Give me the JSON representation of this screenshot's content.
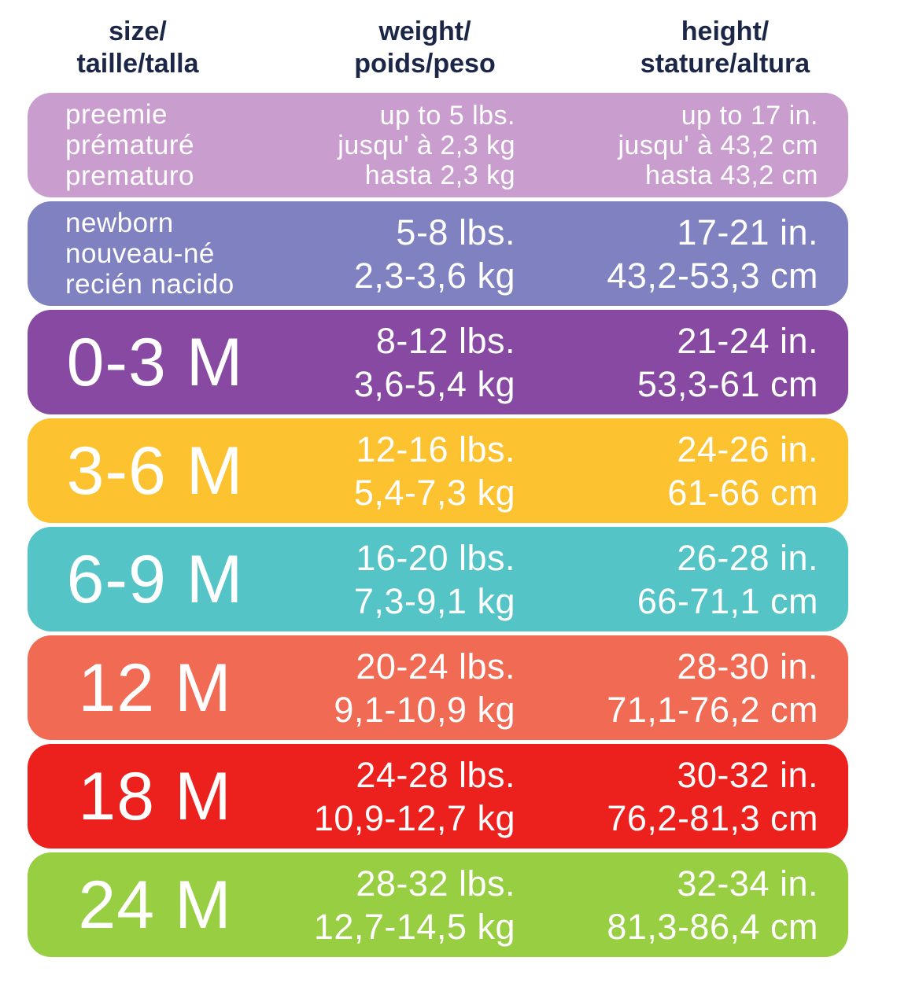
{
  "colors": {
    "background": "#ffffff",
    "header_text": "#1c2647",
    "row_text": "#ffffff"
  },
  "chart_data": {
    "type": "table",
    "title": "Baby size chart (size / weight / height in English, French, Spanish)",
    "columns": [
      {
        "id": "size",
        "lines": [
          "size/",
          "taille/talla"
        ]
      },
      {
        "id": "weight",
        "lines": [
          "weight/",
          "poids/peso"
        ]
      },
      {
        "id": "height",
        "lines": [
          "height/",
          "stature/altura"
        ]
      }
    ],
    "rows": [
      {
        "id": "preemie",
        "color": "#c99ecf",
        "size": [
          "preemie",
          "prématuré",
          "prematuro"
        ],
        "weight": [
          "up to 5 lbs.",
          "jusqu' à 2,3 kg",
          "hasta 2,3 kg"
        ],
        "height": [
          "up to 17 in.",
          "jusqu' à 43,2 cm",
          "hasta 43,2 cm"
        ]
      },
      {
        "id": "newborn",
        "color": "#8081c0",
        "size": [
          "newborn",
          "nouveau-né",
          "recién nacido"
        ],
        "weight": [
          "5-8 lbs.",
          "2,3-3,6 kg"
        ],
        "height": [
          "17-21 in.",
          "43,2-53,3 cm"
        ]
      },
      {
        "id": "0-3m",
        "color": "#8749a1",
        "size": [
          "0-3 M"
        ],
        "weight": [
          "8-12 lbs.",
          "3,6-5,4 kg"
        ],
        "height": [
          "21-24 in.",
          "53,3-61 cm"
        ]
      },
      {
        "id": "3-6m",
        "color": "#fcc230",
        "size": [
          "3-6 M"
        ],
        "weight": [
          "12-16 lbs.",
          "5,4-7,3 kg"
        ],
        "height": [
          "24-26 in.",
          "61-66 cm"
        ]
      },
      {
        "id": "6-9m",
        "color": "#54c4c6",
        "size": [
          "6-9 M"
        ],
        "weight": [
          "16-20 lbs.",
          "7,3-9,1 kg"
        ],
        "height": [
          "26-28 in.",
          "66-71,1 cm"
        ]
      },
      {
        "id": "12m",
        "color": "#f16a54",
        "size": [
          "12 M"
        ],
        "weight": [
          "20-24 lbs.",
          "9,1-10,9 kg"
        ],
        "height": [
          "28-30 in.",
          "71,1-76,2 cm"
        ]
      },
      {
        "id": "18m",
        "color": "#ec211d",
        "size": [
          "18 M"
        ],
        "weight": [
          "24-28 lbs.",
          "10,9-12,7 kg"
        ],
        "height": [
          "30-32 in.",
          "76,2-81,3 cm"
        ]
      },
      {
        "id": "24m",
        "color": "#98ce42",
        "size": [
          "24 M"
        ],
        "weight": [
          "28-32 lbs.",
          "12,7-14,5 kg"
        ],
        "height": [
          "32-34 in.",
          "81,3-86,4 cm"
        ]
      }
    ]
  }
}
